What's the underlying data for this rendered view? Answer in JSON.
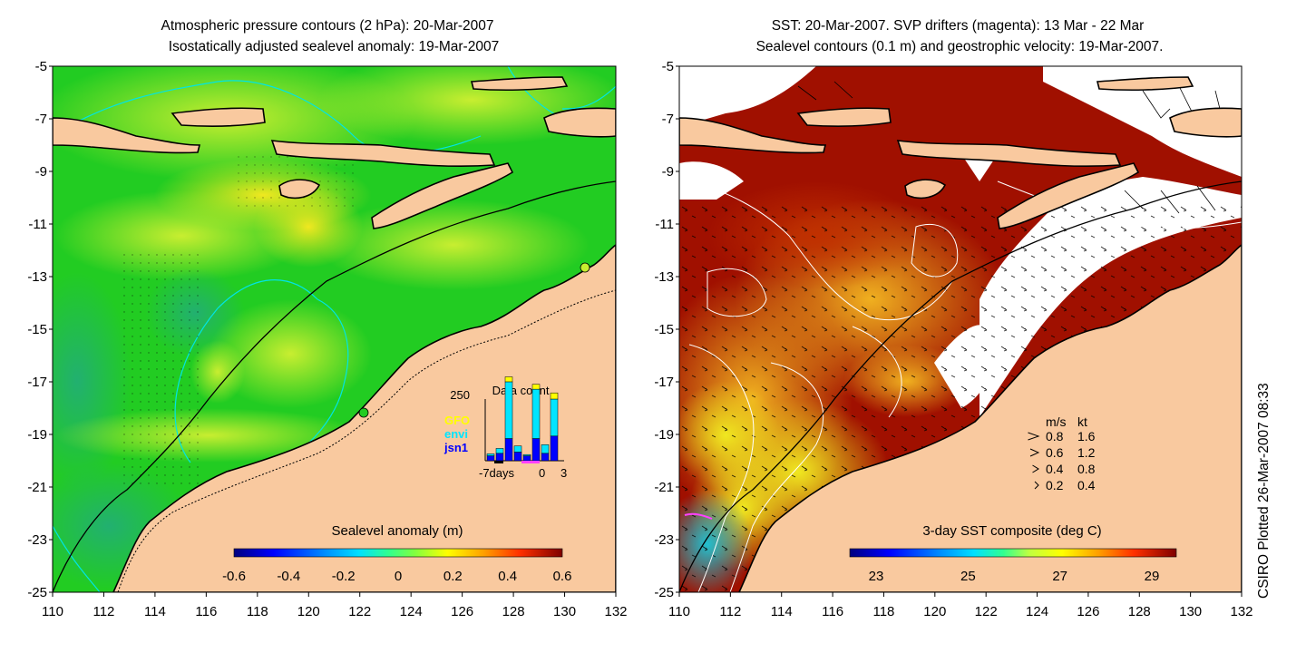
{
  "left_panel": {
    "title_line1": "Atmospheric pressure contours (2 hPa): 20-Mar-2007",
    "title_line2": "Isostatically adjusted sealevel anomaly: 19-Mar-2007",
    "colorbar": {
      "label": "Sealevel anomaly (m)",
      "ticks": [
        "-0.6",
        "-0.4",
        "-0.2",
        "0",
        "0.2",
        "0.4",
        "0.6"
      ],
      "colors": [
        "#00007f",
        "#0000ff",
        "#0080ff",
        "#00e0ff",
        "#40ffbf",
        "#00c040",
        "#c0ff40",
        "#ffff00",
        "#ffb000",
        "#ff6000",
        "#c00000",
        "#7f0000"
      ]
    },
    "inset": {
      "title": "Data count",
      "y_label": "250",
      "x_labels": [
        "-7days",
        "0",
        "3"
      ],
      "legend": [
        {
          "name": "GFO",
          "color": "#ffff00"
        },
        {
          "name": "envi",
          "color": "#00e5ff"
        },
        {
          "name": "jsn1",
          "color": "#0000ff"
        }
      ],
      "bars": [
        {
          "jsn1": 20,
          "envi": 8,
          "gfo": 0
        },
        {
          "jsn1": 30,
          "envi": 20,
          "gfo": 0
        },
        {
          "jsn1": 90,
          "envi": 230,
          "gfo": 20
        },
        {
          "jsn1": 35,
          "envi": 25,
          "gfo": 0
        },
        {
          "jsn1": 20,
          "envi": 5,
          "gfo": 0
        },
        {
          "jsn1": 90,
          "envi": 200,
          "gfo": 20
        },
        {
          "jsn1": 30,
          "envi": 35,
          "gfo": 0
        },
        {
          "jsn1": 100,
          "envi": 150,
          "gfo": 25
        }
      ]
    }
  },
  "right_panel": {
    "title_line1": "SST: 20-Mar-2007. SVP drifters (magenta): 13 Mar - 22 Mar",
    "title_line2": "Sealevel contours (0.1 m) and geostrophic velocity: 19-Mar-2007.",
    "colorbar": {
      "label": "3-day SST composite (deg C)",
      "ticks": [
        "23",
        "25",
        "27",
        "29"
      ],
      "colors": [
        "#00007f",
        "#0000ff",
        "#0080ff",
        "#00e0ff",
        "#40ffbf",
        "#c0ff40",
        "#ffff00",
        "#ffb000",
        "#ff6000",
        "#c00000",
        "#7f0000"
      ]
    },
    "velocity_legend": {
      "header_ms": "m/s",
      "header_kt": "kt",
      "rows": [
        {
          "ms": "0.8",
          "kt": "1.6"
        },
        {
          "ms": "0.6",
          "kt": "1.2"
        },
        {
          "ms": "0.4",
          "kt": "0.8"
        },
        {
          "ms": "0.2",
          "kt": "0.4"
        }
      ]
    }
  },
  "axes": {
    "x_ticks": [
      "110",
      "112",
      "114",
      "116",
      "118",
      "120",
      "122",
      "124",
      "126",
      "128",
      "130",
      "132"
    ],
    "y_ticks": [
      "-5",
      "-7",
      "-9",
      "-11",
      "-13",
      "-15",
      "-17",
      "-19",
      "-21",
      "-23",
      "-25"
    ]
  },
  "credit": "CSIRO Plotted 26-Mar-2007 08:33",
  "colors": {
    "land": "#f9c99f",
    "ocean_left": "#22cc22",
    "ocean_right_warm": "#a01000",
    "contour": "#00e5e5",
    "coast": "#000000"
  }
}
